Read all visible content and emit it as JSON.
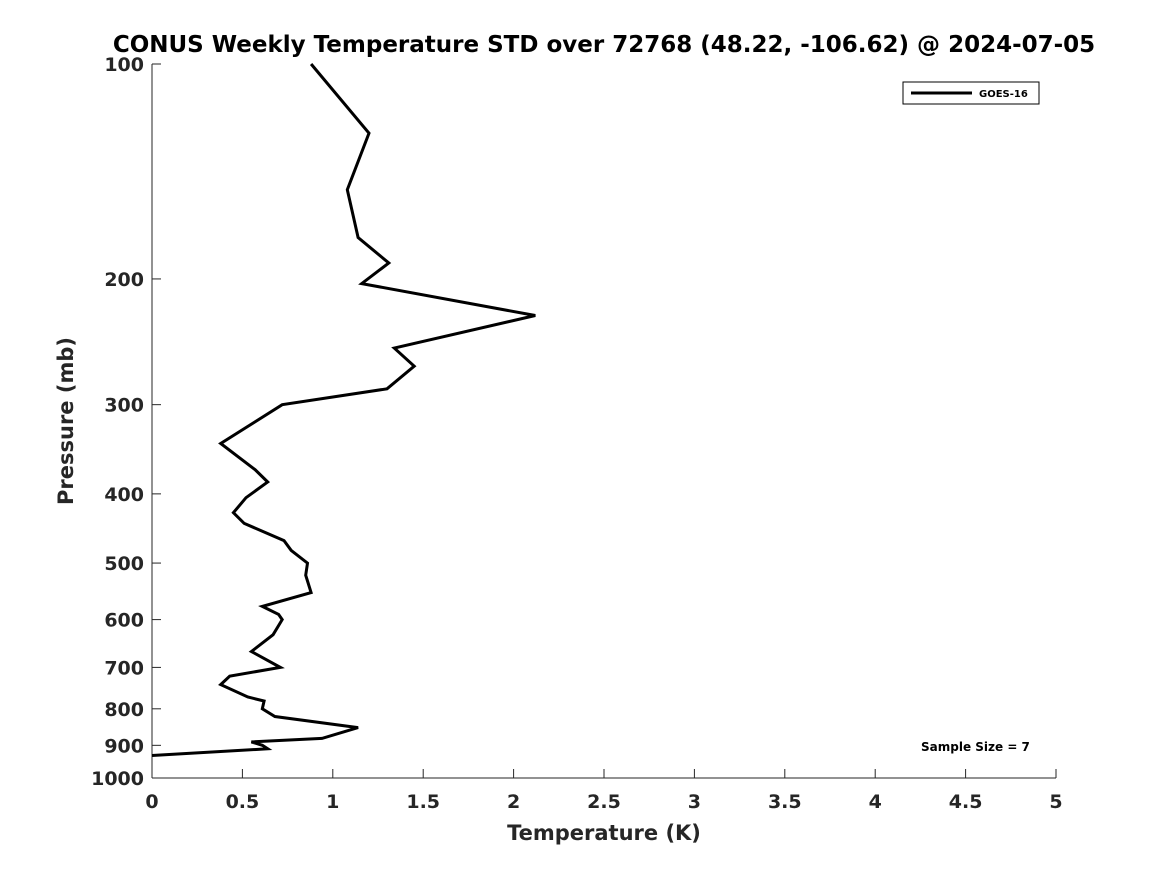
{
  "chart_data": {
    "type": "line",
    "title": "CONUS Weekly Temperature STD over 72768 (48.22, -106.62) @ 2024-07-05",
    "xlabel": "Temperature (K)",
    "ylabel": "Pressure (mb)",
    "xlim": [
      0,
      5
    ],
    "ylim": [
      100,
      1000
    ],
    "y_scale": "log",
    "y_reversed": true,
    "x_ticks": [
      "0",
      "0.5",
      "1",
      "1.5",
      "2",
      "2.5",
      "3",
      "3.5",
      "4",
      "4.5",
      "5"
    ],
    "y_ticks": [
      "100",
      "200",
      "300",
      "400",
      "500",
      "600",
      "700",
      "800",
      "900",
      "1000"
    ],
    "grid": false,
    "legend_position": "top-right",
    "annotation": "Sample Size = 7",
    "series": [
      {
        "name": "GOES-16",
        "color": "#000000",
        "points": [
          [
            0.88,
            100
          ],
          [
            1.2,
            125
          ],
          [
            1.08,
            150
          ],
          [
            1.14,
            175
          ],
          [
            1.31,
            190
          ],
          [
            1.16,
            203
          ],
          [
            2.12,
            225
          ],
          [
            1.34,
            250
          ],
          [
            1.45,
            265
          ],
          [
            1.3,
            285
          ],
          [
            0.72,
            300
          ],
          [
            0.38,
            340
          ],
          [
            0.57,
            370
          ],
          [
            0.64,
            385
          ],
          [
            0.52,
            405
          ],
          [
            0.45,
            425
          ],
          [
            0.51,
            440
          ],
          [
            0.73,
            465
          ],
          [
            0.77,
            480
          ],
          [
            0.86,
            500
          ],
          [
            0.85,
            520
          ],
          [
            0.88,
            550
          ],
          [
            0.61,
            575
          ],
          [
            0.7,
            590
          ],
          [
            0.72,
            600
          ],
          [
            0.67,
            630
          ],
          [
            0.55,
            665
          ],
          [
            0.71,
            700
          ],
          [
            0.43,
            720
          ],
          [
            0.38,
            740
          ],
          [
            0.53,
            770
          ],
          [
            0.62,
            780
          ],
          [
            0.61,
            800
          ],
          [
            0.68,
            820
          ],
          [
            1.14,
            850
          ],
          [
            0.94,
            880
          ],
          [
            0.55,
            890
          ],
          [
            0.61,
            900
          ],
          [
            0.64,
            910
          ],
          [
            0,
            930
          ]
        ]
      }
    ]
  }
}
